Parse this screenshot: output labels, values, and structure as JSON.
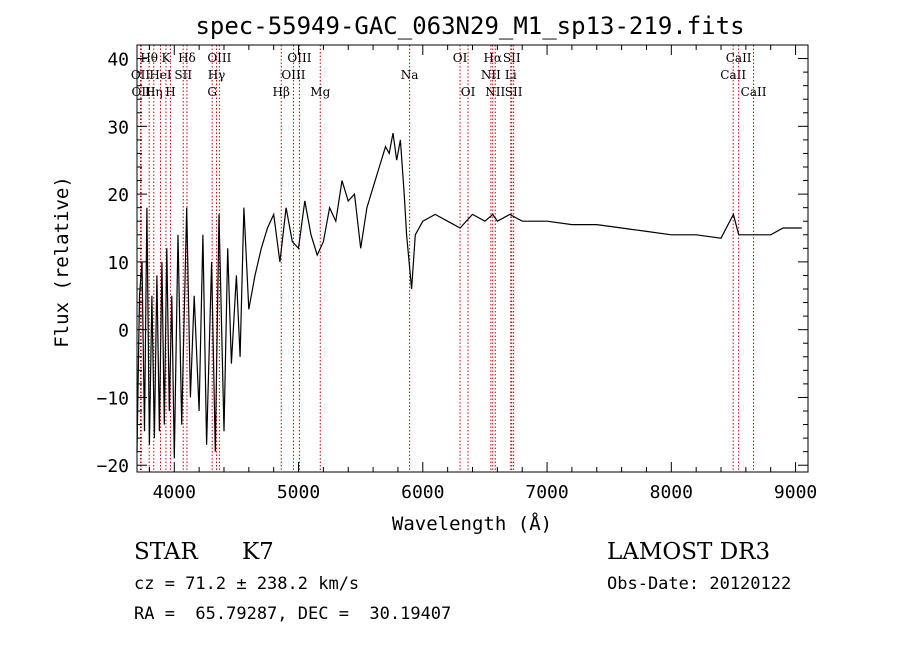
{
  "chart_data": {
    "type": "line",
    "title": "spec-55949-GAC_063N29_M1_sp13-219.fits",
    "xlabel": "Wavelength (Å)",
    "ylabel": "Flux (relative)",
    "xlim": [
      3700,
      9100
    ],
    "ylim": [
      -21,
      42
    ],
    "x_ticks": [
      4000,
      5000,
      6000,
      7000,
      8000,
      9000
    ],
    "x_tick_labels": [
      "4000",
      "5000",
      "6000",
      "7000",
      "8000",
      "9000"
    ],
    "y_ticks": [
      -20,
      -10,
      0,
      10,
      20,
      30,
      40
    ],
    "y_tick_labels": [
      "−20",
      "−10",
      "0",
      "10",
      "20",
      "30",
      "40"
    ],
    "grid": false,
    "series": [
      {
        "name": "spectrum",
        "x": [
          3700,
          3720,
          3740,
          3760,
          3780,
          3800,
          3820,
          3840,
          3860,
          3880,
          3900,
          3920,
          3940,
          3960,
          3980,
          4000,
          4030,
          4060,
          4100,
          4130,
          4160,
          4200,
          4230,
          4260,
          4300,
          4330,
          4360,
          4400,
          4430,
          4460,
          4500,
          4530,
          4560,
          4600,
          4650,
          4700,
          4750,
          4800,
          4850,
          4900,
          4950,
          5000,
          5050,
          5100,
          5150,
          5200,
          5250,
          5300,
          5350,
          5400,
          5450,
          5500,
          5550,
          5600,
          5650,
          5700,
          5730,
          5760,
          5790,
          5820,
          5850,
          5870,
          5890,
          5910,
          5940,
          6000,
          6100,
          6200,
          6300,
          6400,
          6500,
          6563,
          6600,
          6700,
          6800,
          6900,
          7000,
          7200,
          7400,
          7600,
          7800,
          8000,
          8200,
          8400,
          8500,
          8542,
          8600,
          8700,
          8800,
          8900,
          9000,
          9050
        ],
        "y": [
          -18,
          5,
          10,
          -15,
          18,
          -17,
          5,
          -16,
          8,
          -15,
          10,
          -14,
          12,
          -12,
          5,
          -19,
          14,
          -14,
          18,
          -10,
          5,
          -12,
          14,
          -17,
          10,
          -18,
          17,
          -15,
          12,
          -5,
          8,
          -4,
          18,
          3,
          8,
          12,
          15,
          17,
          10,
          18,
          13,
          12,
          19,
          14,
          11,
          13,
          18,
          16,
          22,
          19,
          20,
          12,
          18,
          21,
          24,
          27,
          26,
          29,
          25,
          28,
          20,
          14,
          10,
          6,
          14,
          16,
          17,
          16,
          15,
          17,
          16,
          17,
          16,
          17,
          16,
          16,
          16,
          15.5,
          15.5,
          15,
          14.5,
          14,
          14,
          13.5,
          17,
          14,
          14,
          14,
          14,
          15,
          15,
          15
        ]
      }
    ],
    "line_markers": [
      {
        "wavelength": 3728,
        "label": "OII",
        "row": 2
      },
      {
        "wavelength": 3734,
        "label": "OII",
        "row": 3
      },
      {
        "wavelength": 3798,
        "label": "Hθ",
        "row": 1
      },
      {
        "wavelength": 3835,
        "label": "Hη",
        "row": 3
      },
      {
        "wavelength": 3889,
        "label": "HeI",
        "row": 2
      },
      {
        "wavelength": 3933,
        "label": "K",
        "row": 1
      },
      {
        "wavelength": 3969,
        "label": "H",
        "row": 3
      },
      {
        "wavelength": 4072,
        "label": "SII",
        "row": 2
      },
      {
        "wavelength": 4102,
        "label": "Hδ",
        "row": 1
      },
      {
        "wavelength": 4305,
        "label": "G",
        "row": 3
      },
      {
        "wavelength": 4340,
        "label": "Hγ",
        "row": 2
      },
      {
        "wavelength": 4363,
        "label": "OIII",
        "row": 1
      },
      {
        "wavelength": 4861,
        "label": "Hβ",
        "row": 3
      },
      {
        "wavelength": 4959,
        "label": "OIII",
        "row": 2
      },
      {
        "wavelength": 5007,
        "label": "OIII",
        "row": 1
      },
      {
        "wavelength": 5175,
        "label": "Mg",
        "row": 3
      },
      {
        "wavelength": 5894,
        "label": "Na",
        "row": 2
      },
      {
        "wavelength": 6300,
        "label": "OI",
        "row": 1
      },
      {
        "wavelength": 6364,
        "label": "OI",
        "row": 3
      },
      {
        "wavelength": 6548,
        "label": "NII",
        "row": 2
      },
      {
        "wavelength": 6563,
        "label": "Hα",
        "row": 1
      },
      {
        "wavelength": 6583,
        "label": "NII",
        "row": 3
      },
      {
        "wavelength": 6708,
        "label": "Li",
        "row": 2
      },
      {
        "wavelength": 6716,
        "label": "SII",
        "row": 1
      },
      {
        "wavelength": 6731,
        "label": "SII",
        "row": 3
      },
      {
        "wavelength": 8498,
        "label": "CaII",
        "row": 2
      },
      {
        "wavelength": 8542,
        "label": "CaII",
        "row": 1
      },
      {
        "wavelength": 8662,
        "label": "CaII",
        "row": 3
      }
    ]
  },
  "info": {
    "object_class": "STAR",
    "subclass": "K7",
    "survey": "LAMOST DR3",
    "cz": "cz = 71.2 ± 238.2 km/s",
    "obs_date": "Obs-Date: 20120122",
    "coords": "RA =  65.79287, DEC =  30.19407"
  },
  "colors": {
    "marker": "#cc0000",
    "line": "#000000",
    "axes": "#000000"
  }
}
